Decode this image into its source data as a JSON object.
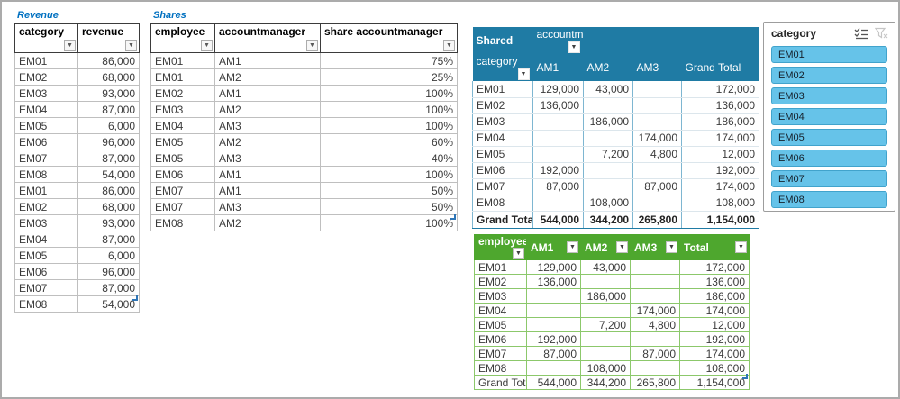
{
  "revenue": {
    "title": "Revenue",
    "headers": [
      "category",
      "revenue"
    ],
    "rows": [
      [
        "EM01",
        "86,000"
      ],
      [
        "EM02",
        "68,000"
      ],
      [
        "EM03",
        "93,000"
      ],
      [
        "EM04",
        "87,000"
      ],
      [
        "EM05",
        "6,000"
      ],
      [
        "EM06",
        "96,000"
      ],
      [
        "EM07",
        "87,000"
      ],
      [
        "EM08",
        "54,000"
      ],
      [
        "EM01",
        "86,000"
      ],
      [
        "EM02",
        "68,000"
      ],
      [
        "EM03",
        "93,000"
      ],
      [
        "EM04",
        "87,000"
      ],
      [
        "EM05",
        "6,000"
      ],
      [
        "EM06",
        "96,000"
      ],
      [
        "EM07",
        "87,000"
      ],
      [
        "EM08",
        "54,000"
      ]
    ]
  },
  "shares": {
    "title": "Shares",
    "headers": [
      "employee",
      "accountmanager",
      "share accountmanager"
    ],
    "rows": [
      [
        "EM01",
        "AM1",
        "75%"
      ],
      [
        "EM01",
        "AM2",
        "25%"
      ],
      [
        "EM02",
        "AM1",
        "100%"
      ],
      [
        "EM03",
        "AM2",
        "100%"
      ],
      [
        "EM04",
        "AM3",
        "100%"
      ],
      [
        "EM05",
        "AM2",
        "60%"
      ],
      [
        "EM05",
        "AM3",
        "40%"
      ],
      [
        "EM06",
        "AM1",
        "100%"
      ],
      [
        "EM07",
        "AM1",
        "50%"
      ],
      [
        "EM07",
        "AM3",
        "50%"
      ],
      [
        "EM08",
        "AM2",
        "100%"
      ]
    ]
  },
  "pivot": {
    "name": "Shared",
    "filter_field": "accountm",
    "row_field": "category",
    "col_headers": [
      "AM1",
      "AM2",
      "AM3",
      "Grand Total"
    ],
    "rows": [
      [
        "EM01",
        "129,000",
        "43,000",
        "",
        "172,000"
      ],
      [
        "EM02",
        "136,000",
        "",
        "",
        "136,000"
      ],
      [
        "EM03",
        "",
        "186,000",
        "",
        "186,000"
      ],
      [
        "EM04",
        "",
        "",
        "174,000",
        "174,000"
      ],
      [
        "EM05",
        "",
        "7,200",
        "4,800",
        "12,000"
      ],
      [
        "EM06",
        "192,000",
        "",
        "",
        "192,000"
      ],
      [
        "EM07",
        "87,000",
        "",
        "87,000",
        "174,000"
      ],
      [
        "EM08",
        "",
        "108,000",
        "",
        "108,000"
      ]
    ],
    "grand_total": [
      "Grand Total",
      "544,000",
      "344,200",
      "265,800",
      "1,154,000"
    ]
  },
  "slicer": {
    "title": "category",
    "items": [
      "EM01",
      "EM02",
      "EM03",
      "EM04",
      "EM05",
      "EM06",
      "EM07",
      "EM08"
    ]
  },
  "green": {
    "headers": [
      "employee",
      "AM1",
      "AM2",
      "AM3",
      "Total"
    ],
    "rows": [
      [
        "EM01",
        "129,000",
        "43,000",
        "",
        "172,000"
      ],
      [
        "EM02",
        "136,000",
        "",
        "",
        "136,000"
      ],
      [
        "EM03",
        "",
        "186,000",
        "",
        "186,000"
      ],
      [
        "EM04",
        "",
        "",
        "174,000",
        "174,000"
      ],
      [
        "EM05",
        "",
        "7,200",
        "4,800",
        "12,000"
      ],
      [
        "EM06",
        "192,000",
        "",
        "",
        "192,000"
      ],
      [
        "EM07",
        "87,000",
        "",
        "87,000",
        "174,000"
      ],
      [
        "EM08",
        "",
        "108,000",
        "",
        "108,000"
      ]
    ],
    "grand_total": [
      "Grand Total",
      "544,000",
      "344,200",
      "265,800",
      "1,154,000"
    ]
  },
  "colors": {
    "pivot_header": "#1F7BA4",
    "green_header": "#4EA72E",
    "slicer_item": "#66C3E9",
    "title_blue": "#0070C0",
    "handle_blue": "#2E75B6"
  }
}
